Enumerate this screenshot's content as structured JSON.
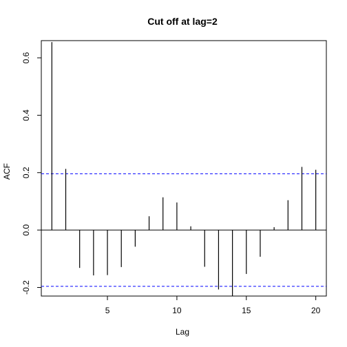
{
  "chart_data": {
    "type": "bar",
    "title": "Cut off at lag=2",
    "xlabel": "Lag",
    "ylabel": "ACF",
    "xlim": [
      0.24,
      20.76
    ],
    "ylim": [
      -0.23,
      0.66
    ],
    "x_ticks": [
      5,
      10,
      15,
      20
    ],
    "x_tick_labels": [
      "5",
      "10",
      "15",
      "20"
    ],
    "y_ticks": [
      -0.2,
      0.0,
      0.2,
      0.4,
      0.6
    ],
    "y_tick_labels": [
      "-0.2",
      "0.0",
      "0.2",
      "0.4",
      "0.6"
    ],
    "lags": [
      1,
      2,
      3,
      4,
      5,
      6,
      7,
      8,
      9,
      10,
      11,
      12,
      13,
      14,
      15,
      16,
      17,
      18,
      19,
      20
    ],
    "values": [
      0.655,
      0.213,
      -0.132,
      -0.158,
      -0.157,
      -0.129,
      -0.058,
      0.048,
      0.114,
      0.096,
      0.013,
      -0.128,
      -0.207,
      -0.231,
      -0.153,
      -0.093,
      0.01,
      0.104,
      0.22,
      0.21
    ],
    "confidence_bounds": [
      0.196,
      -0.196
    ],
    "zero_line": 0,
    "colors": {
      "bars": "#000000",
      "confidence": "#0000ff",
      "axes": "#000000"
    },
    "grid": false
  }
}
